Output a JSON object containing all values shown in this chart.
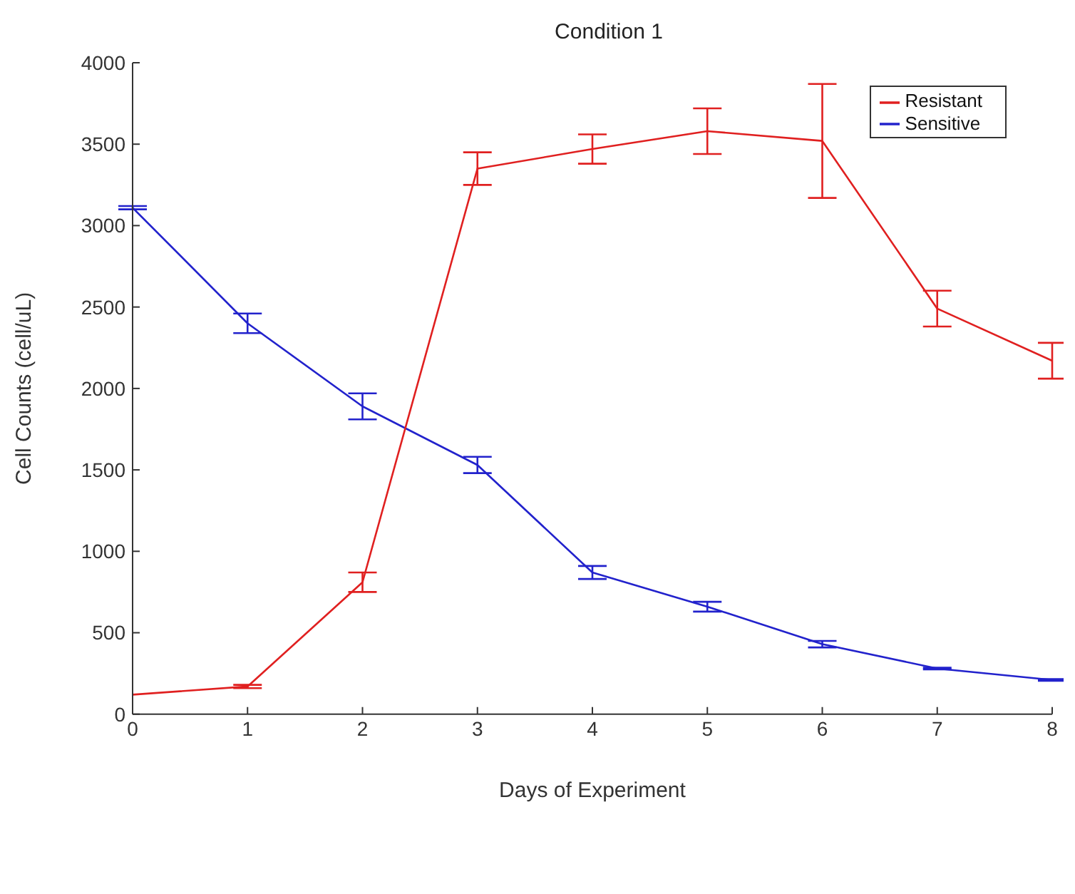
{
  "chart_data": {
    "type": "line",
    "title": "Condition 1",
    "xlabel": "Days of Experiment",
    "ylabel": "Cell Counts (cell/uL)",
    "x": [
      0,
      1,
      2,
      3,
      4,
      5,
      6,
      7,
      8
    ],
    "series": [
      {
        "name": "Sensitive",
        "color": "#2222cc",
        "values": [
          3110,
          2400,
          1890,
          1530,
          870,
          660,
          430,
          280,
          210
        ],
        "errors": [
          10,
          60,
          80,
          50,
          40,
          30,
          20,
          5,
          5
        ]
      },
      {
        "name": "Resistant",
        "color": "#e02020",
        "values": [
          120,
          170,
          810,
          3350,
          3470,
          3580,
          3520,
          2490,
          2170
        ],
        "errors": [
          0,
          10,
          60,
          100,
          90,
          140,
          350,
          110,
          110
        ]
      }
    ],
    "xlim": [
      0,
      8
    ],
    "xticks": [
      0,
      1,
      2,
      3,
      4,
      5,
      6,
      7,
      8
    ],
    "ylim": [
      0,
      4000
    ],
    "yticks": [
      0,
      500,
      1000,
      1500,
      2000,
      2500,
      3000,
      3500,
      4000
    ],
    "legend": "top right",
    "marker": "none"
  }
}
